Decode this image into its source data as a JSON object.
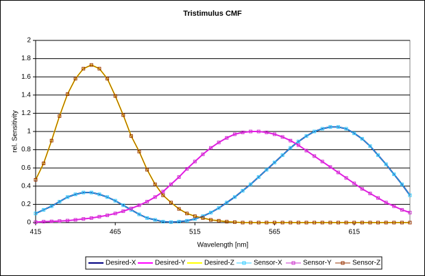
{
  "chart_data": {
    "type": "line",
    "title": "Tristimulus CMF",
    "x_label": "Wavelength [nm]",
    "y_label": "rel. Sensitivity",
    "x": [
      415,
      420,
      425,
      430,
      435,
      440,
      445,
      450,
      455,
      460,
      465,
      470,
      475,
      480,
      485,
      490,
      495,
      500,
      505,
      510,
      515,
      520,
      525,
      530,
      535,
      540,
      545,
      550,
      555,
      560,
      565,
      570,
      575,
      580,
      585,
      590,
      595,
      600,
      605,
      610,
      615,
      620,
      625,
      630,
      635,
      640,
      645,
      650
    ],
    "xlim": [
      415,
      650
    ],
    "xticks": [
      415,
      465,
      515,
      565,
      615
    ],
    "ylim": [
      0,
      2
    ],
    "yticks": [
      0,
      0.2,
      0.4,
      0.6,
      0.8,
      1,
      1.2,
      1.4,
      1.6,
      1.8,
      2
    ],
    "grid": true,
    "legend": "bottom",
    "series": [
      {
        "name": "Desired-X",
        "color": "#000080",
        "marker": false,
        "values": [
          0.1,
          0.14,
          0.18,
          0.23,
          0.28,
          0.31,
          0.33,
          0.33,
          0.31,
          0.28,
          0.24,
          0.19,
          0.14,
          0.09,
          0.05,
          0.03,
          0.01,
          0.005,
          0.01,
          0.02,
          0.04,
          0.07,
          0.11,
          0.16,
          0.22,
          0.28,
          0.35,
          0.42,
          0.5,
          0.58,
          0.66,
          0.74,
          0.82,
          0.89,
          0.95,
          1.0,
          1.03,
          1.05,
          1.05,
          1.03,
          0.98,
          0.92,
          0.84,
          0.74,
          0.64,
          0.53,
          0.42,
          0.3
        ]
      },
      {
        "name": "Desired-Y",
        "color": "#ff00ff",
        "marker": false,
        "values": [
          0.005,
          0.01,
          0.013,
          0.017,
          0.022,
          0.03,
          0.04,
          0.05,
          0.065,
          0.08,
          0.1,
          0.125,
          0.155,
          0.19,
          0.23,
          0.28,
          0.34,
          0.42,
          0.5,
          0.59,
          0.67,
          0.75,
          0.82,
          0.88,
          0.93,
          0.97,
          0.99,
          1.0,
          1.0,
          0.99,
          0.97,
          0.94,
          0.9,
          0.85,
          0.79,
          0.73,
          0.67,
          0.61,
          0.55,
          0.49,
          0.43,
          0.37,
          0.32,
          0.27,
          0.22,
          0.18,
          0.14,
          0.11
        ]
      },
      {
        "name": "Desired-Z",
        "color": "#ffff00",
        "marker": false,
        "values": [
          0.47,
          0.65,
          0.9,
          1.17,
          1.41,
          1.58,
          1.69,
          1.73,
          1.69,
          1.58,
          1.39,
          1.18,
          0.95,
          0.78,
          0.58,
          0.42,
          0.3,
          0.22,
          0.15,
          0.1,
          0.07,
          0.05,
          0.03,
          0.02,
          0.01,
          0.005,
          0,
          0,
          0,
          0,
          0,
          0,
          0,
          0,
          0,
          0,
          0,
          0,
          0,
          0,
          0,
          0,
          0,
          0,
          0,
          0,
          0,
          0
        ]
      },
      {
        "name": "Sensor-X",
        "color": "#33ccff",
        "marker": true,
        "values": [
          0.1,
          0.14,
          0.18,
          0.23,
          0.28,
          0.31,
          0.33,
          0.33,
          0.31,
          0.28,
          0.24,
          0.19,
          0.14,
          0.09,
          0.05,
          0.03,
          0.01,
          0.005,
          0.01,
          0.02,
          0.04,
          0.07,
          0.11,
          0.16,
          0.22,
          0.28,
          0.35,
          0.42,
          0.5,
          0.58,
          0.66,
          0.74,
          0.82,
          0.89,
          0.95,
          1.0,
          1.03,
          1.05,
          1.05,
          1.03,
          0.98,
          0.92,
          0.84,
          0.74,
          0.64,
          0.53,
          0.42,
          0.3
        ]
      },
      {
        "name": "Sensor-Y",
        "color": "#cc33cc",
        "marker": true,
        "values": [
          0.005,
          0.01,
          0.013,
          0.017,
          0.022,
          0.03,
          0.04,
          0.05,
          0.065,
          0.08,
          0.1,
          0.125,
          0.155,
          0.19,
          0.23,
          0.28,
          0.34,
          0.42,
          0.5,
          0.59,
          0.67,
          0.75,
          0.82,
          0.88,
          0.93,
          0.97,
          0.99,
          1.0,
          1.0,
          0.99,
          0.97,
          0.94,
          0.9,
          0.85,
          0.79,
          0.73,
          0.67,
          0.61,
          0.55,
          0.49,
          0.43,
          0.37,
          0.32,
          0.27,
          0.22,
          0.18,
          0.14,
          0.11
        ]
      },
      {
        "name": "Sensor-Z",
        "color": "#993300",
        "marker": true,
        "values": [
          0.47,
          0.65,
          0.9,
          1.17,
          1.41,
          1.58,
          1.69,
          1.73,
          1.69,
          1.58,
          1.39,
          1.18,
          0.95,
          0.78,
          0.58,
          0.42,
          0.3,
          0.22,
          0.15,
          0.1,
          0.07,
          0.05,
          0.03,
          0.02,
          0.01,
          0.005,
          0,
          0,
          0,
          0,
          0,
          0,
          0,
          0,
          0,
          0,
          0,
          0,
          0,
          0,
          0,
          0,
          0,
          0,
          0,
          0,
          0,
          0
        ]
      }
    ]
  }
}
